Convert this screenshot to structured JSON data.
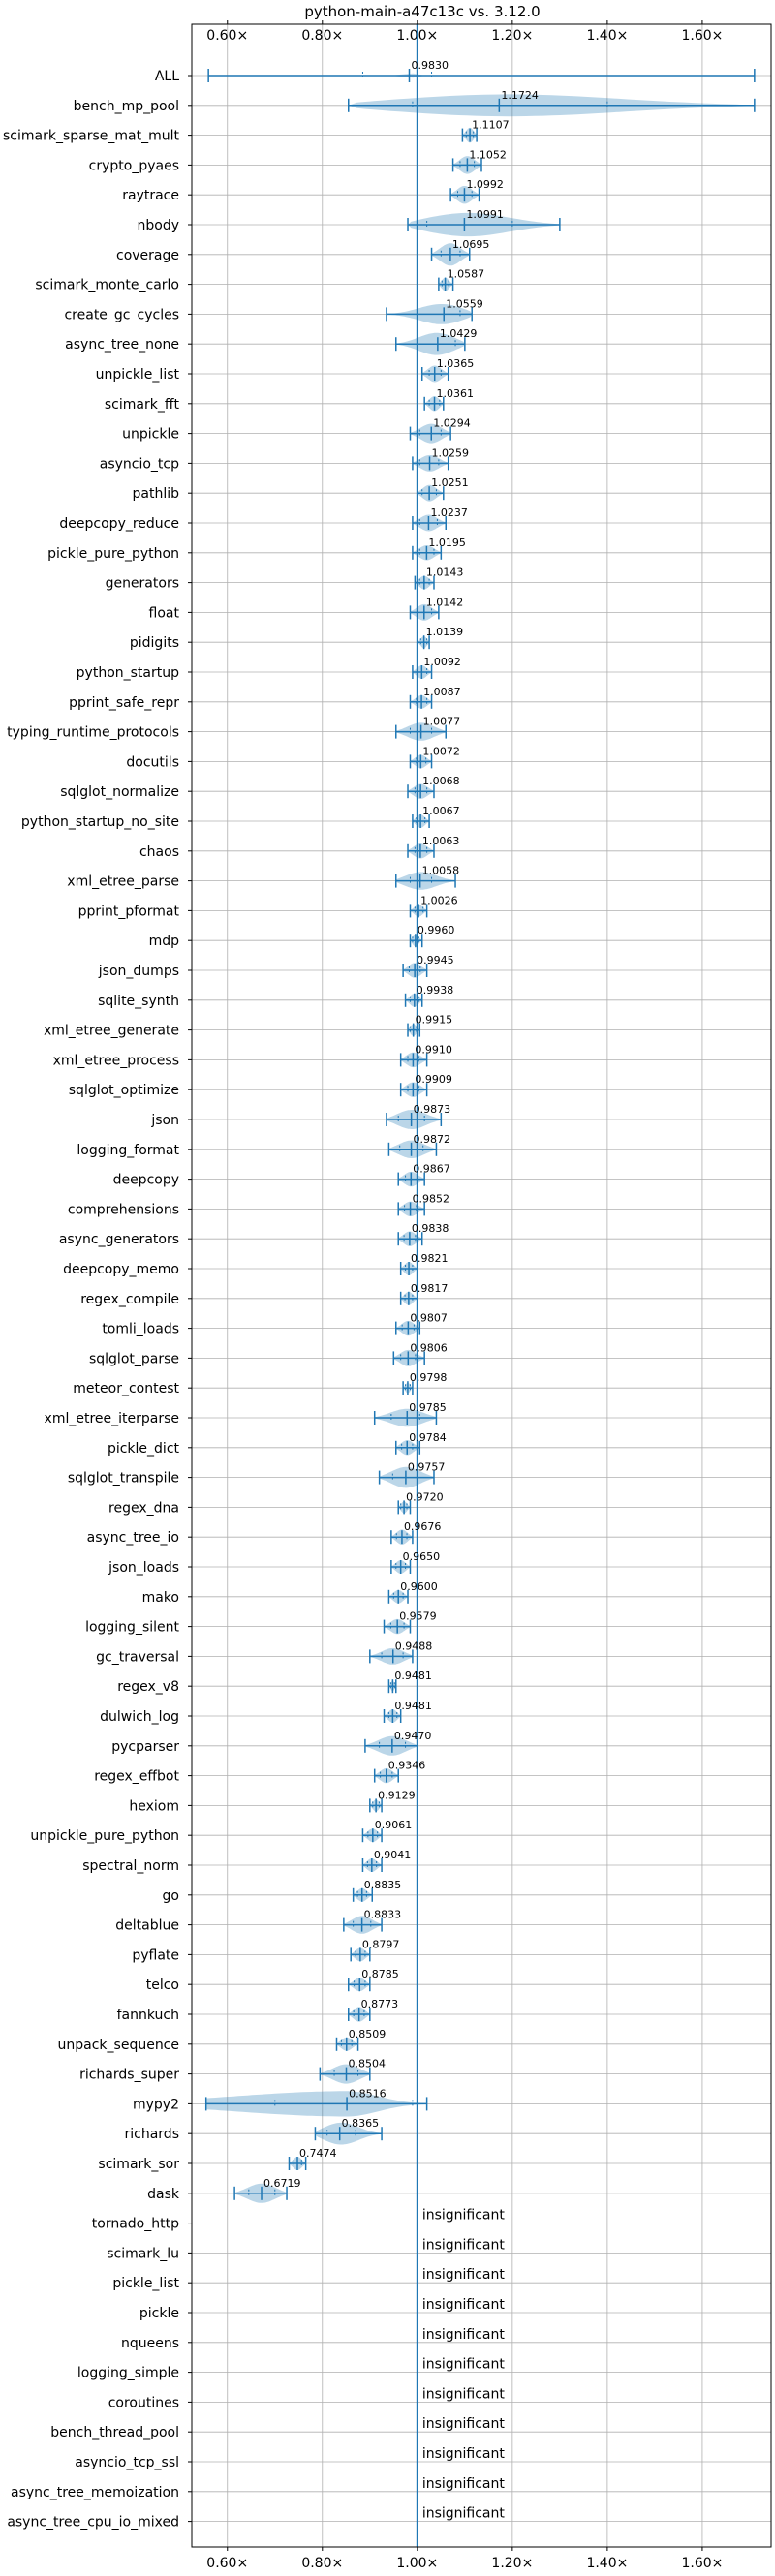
{
  "chart_data": {
    "type": "violin",
    "title": "python-main-a47c13c vs. 3.12.0",
    "xlim": [
      0.525,
      1.745
    ],
    "xticks": [
      0.6,
      0.8,
      1.0,
      1.2,
      1.4,
      1.6
    ],
    "xtick_labels": [
      "0.60×",
      "0.80×",
      "1.00×",
      "1.20×",
      "1.40×",
      "1.60×"
    ],
    "reference_line": 1.0,
    "grid": true,
    "series_color": "#1f77b4",
    "insignificant_label": "insignificant",
    "benchmarks": [
      {
        "name": "ALL",
        "value": 0.983,
        "label": "0.9830",
        "min": 0.56,
        "max": 1.71,
        "q1": 0.885,
        "q3": 1.03,
        "half": 0.02,
        "shape": "spike"
      },
      {
        "name": "bench_mp_pool",
        "value": 1.1724,
        "label": "1.1724",
        "min": 0.855,
        "max": 1.71,
        "q1": 0.99,
        "q3": 1.4,
        "half": 0.75,
        "shape": "wide"
      },
      {
        "name": "scimark_sparse_mat_mult",
        "value": 1.1107,
        "label": "1.1107",
        "min": 1.095,
        "max": 1.125,
        "q1": 1.103,
        "q3": 1.118,
        "half": 0.5,
        "shape": "normal"
      },
      {
        "name": "crypto_pyaes",
        "value": 1.1052,
        "label": "1.1052",
        "min": 1.075,
        "max": 1.135,
        "q1": 1.09,
        "q3": 1.12,
        "half": 0.6,
        "shape": "normal"
      },
      {
        "name": "raytrace",
        "value": 1.0992,
        "label": "1.0992",
        "min": 1.07,
        "max": 1.13,
        "q1": 1.085,
        "q3": 1.115,
        "half": 0.6,
        "shape": "normal"
      },
      {
        "name": "nbody",
        "value": 1.0991,
        "label": "1.0991",
        "min": 0.98,
        "max": 1.3,
        "q1": 1.02,
        "q3": 1.2,
        "half": 0.8,
        "shape": "wide"
      },
      {
        "name": "coverage",
        "value": 1.0695,
        "label": "1.0695",
        "min": 1.03,
        "max": 1.11,
        "q1": 1.05,
        "q3": 1.09,
        "half": 0.75,
        "shape": "normal"
      },
      {
        "name": "scimark_monte_carlo",
        "value": 1.0587,
        "label": "1.0587",
        "min": 1.045,
        "max": 1.075,
        "q1": 1.052,
        "q3": 1.066,
        "half": 0.45,
        "shape": "normal"
      },
      {
        "name": "create_gc_cycles",
        "value": 1.0559,
        "label": "1.0559",
        "min": 0.935,
        "max": 1.115,
        "q1": 1.0,
        "q3": 1.09,
        "half": 0.7,
        "shape": "normal"
      },
      {
        "name": "async_tree_none",
        "value": 1.0429,
        "label": "1.0429",
        "min": 0.955,
        "max": 1.1,
        "q1": 1.0,
        "q3": 1.08,
        "half": 0.75,
        "shape": "normal"
      },
      {
        "name": "unpickle_list",
        "value": 1.0365,
        "label": "1.0365",
        "min": 1.01,
        "max": 1.065,
        "q1": 1.025,
        "q3": 1.05,
        "half": 0.55,
        "shape": "normal"
      },
      {
        "name": "scimark_fft",
        "value": 1.0361,
        "label": "1.0361",
        "min": 1.015,
        "max": 1.055,
        "q1": 1.025,
        "q3": 1.047,
        "half": 0.5,
        "shape": "normal"
      },
      {
        "name": "unpickle",
        "value": 1.0294,
        "label": "1.0294",
        "min": 0.985,
        "max": 1.07,
        "q1": 1.005,
        "q3": 1.05,
        "half": 0.65,
        "shape": "normal"
      },
      {
        "name": "asyncio_tcp",
        "value": 1.0259,
        "label": "1.0259",
        "min": 0.99,
        "max": 1.065,
        "q1": 1.005,
        "q3": 1.045,
        "half": 0.55,
        "shape": "normal"
      },
      {
        "name": "pathlib",
        "value": 1.0251,
        "label": "1.0251",
        "min": 1.0,
        "max": 1.055,
        "q1": 1.01,
        "q3": 1.04,
        "half": 0.55,
        "shape": "normal"
      },
      {
        "name": "deepcopy_reduce",
        "value": 1.0237,
        "label": "1.0237",
        "min": 0.99,
        "max": 1.06,
        "q1": 1.005,
        "q3": 1.042,
        "half": 0.55,
        "shape": "normal"
      },
      {
        "name": "pickle_pure_python",
        "value": 1.0195,
        "label": "1.0195",
        "min": 0.99,
        "max": 1.05,
        "q1": 1.005,
        "q3": 1.035,
        "half": 0.5,
        "shape": "normal"
      },
      {
        "name": "generators",
        "value": 1.0143,
        "label": "1.0143",
        "min": 0.995,
        "max": 1.035,
        "q1": 1.005,
        "q3": 1.025,
        "half": 0.45,
        "shape": "normal"
      },
      {
        "name": "float",
        "value": 1.0142,
        "label": "1.0142",
        "min": 0.985,
        "max": 1.045,
        "q1": 1.0,
        "q3": 1.03,
        "half": 0.55,
        "shape": "normal"
      },
      {
        "name": "pidigits",
        "value": 1.0139,
        "label": "1.0139",
        "min": 1.0,
        "max": 1.025,
        "q1": 1.007,
        "q3": 1.02,
        "half": 0.4,
        "shape": "normal"
      },
      {
        "name": "python_startup",
        "value": 1.0092,
        "label": "1.0092",
        "min": 0.99,
        "max": 1.03,
        "q1": 1.0,
        "q3": 1.02,
        "half": 0.45,
        "shape": "normal"
      },
      {
        "name": "pprint_safe_repr",
        "value": 1.0087,
        "label": "1.0087",
        "min": 0.985,
        "max": 1.03,
        "q1": 0.998,
        "q3": 1.02,
        "half": 0.45,
        "shape": "normal"
      },
      {
        "name": "typing_runtime_protocols",
        "value": 1.0077,
        "label": "1.0077",
        "min": 0.955,
        "max": 1.06,
        "q1": 0.985,
        "q3": 1.03,
        "half": 0.6,
        "shape": "normal"
      },
      {
        "name": "docutils",
        "value": 1.0072,
        "label": "1.0072",
        "min": 0.985,
        "max": 1.03,
        "q1": 0.998,
        "q3": 1.018,
        "half": 0.45,
        "shape": "normal"
      },
      {
        "name": "sqlglot_normalize",
        "value": 1.0068,
        "label": "1.0068",
        "min": 0.98,
        "max": 1.035,
        "q1": 0.995,
        "q3": 1.02,
        "half": 0.5,
        "shape": "normal"
      },
      {
        "name": "python_startup_no_site",
        "value": 1.0067,
        "label": "1.0067",
        "min": 0.99,
        "max": 1.025,
        "q1": 0.998,
        "q3": 1.016,
        "half": 0.45,
        "shape": "normal"
      },
      {
        "name": "chaos",
        "value": 1.0063,
        "label": "1.0063",
        "min": 0.98,
        "max": 1.035,
        "q1": 0.995,
        "q3": 1.02,
        "half": 0.5,
        "shape": "normal"
      },
      {
        "name": "xml_etree_parse",
        "value": 1.0058,
        "label": "1.0058",
        "min": 0.955,
        "max": 1.08,
        "q1": 0.985,
        "q3": 1.03,
        "half": 0.6,
        "shape": "normal"
      },
      {
        "name": "pprint_pformat",
        "value": 1.0026,
        "label": "1.0026",
        "min": 0.985,
        "max": 1.02,
        "q1": 0.995,
        "q3": 1.012,
        "half": 0.4,
        "shape": "normal"
      },
      {
        "name": "mdp",
        "value": 0.996,
        "label": "0.9960",
        "min": 0.985,
        "max": 1.01,
        "q1": 0.99,
        "q3": 1.003,
        "half": 0.4,
        "shape": "normal"
      },
      {
        "name": "json_dumps",
        "value": 0.9945,
        "label": "0.9945",
        "min": 0.97,
        "max": 1.02,
        "q1": 0.983,
        "q3": 1.006,
        "half": 0.5,
        "shape": "normal"
      },
      {
        "name": "sqlite_synth",
        "value": 0.9938,
        "label": "0.9938",
        "min": 0.975,
        "max": 1.01,
        "q1": 0.985,
        "q3": 1.003,
        "half": 0.45,
        "shape": "normal"
      },
      {
        "name": "xml_etree_generate",
        "value": 0.9915,
        "label": "0.9915",
        "min": 0.98,
        "max": 1.005,
        "q1": 0.985,
        "q3": 0.998,
        "half": 0.4,
        "shape": "normal"
      },
      {
        "name": "xml_etree_process",
        "value": 0.991,
        "label": "0.9910",
        "min": 0.965,
        "max": 1.02,
        "q1": 0.98,
        "q3": 1.003,
        "half": 0.5,
        "shape": "normal"
      },
      {
        "name": "sqlglot_optimize",
        "value": 0.9909,
        "label": "0.9909",
        "min": 0.965,
        "max": 1.02,
        "q1": 0.98,
        "q3": 1.003,
        "half": 0.5,
        "shape": "normal"
      },
      {
        "name": "json",
        "value": 0.9873,
        "label": "0.9873",
        "min": 0.935,
        "max": 1.05,
        "q1": 0.96,
        "q3": 1.015,
        "half": 0.65,
        "shape": "normal"
      },
      {
        "name": "logging_format",
        "value": 0.9872,
        "label": "0.9872",
        "min": 0.94,
        "max": 1.04,
        "q1": 0.963,
        "q3": 1.012,
        "half": 0.6,
        "shape": "normal"
      },
      {
        "name": "deepcopy",
        "value": 0.9867,
        "label": "0.9867",
        "min": 0.96,
        "max": 1.015,
        "q1": 0.975,
        "q3": 1.0,
        "half": 0.5,
        "shape": "normal"
      },
      {
        "name": "comprehensions",
        "value": 0.9852,
        "label": "0.9852",
        "min": 0.96,
        "max": 1.015,
        "q1": 0.973,
        "q3": 0.998,
        "half": 0.5,
        "shape": "normal"
      },
      {
        "name": "async_generators",
        "value": 0.9838,
        "label": "0.9838",
        "min": 0.96,
        "max": 1.01,
        "q1": 0.972,
        "q3": 0.996,
        "half": 0.5,
        "shape": "normal"
      },
      {
        "name": "deepcopy_memo",
        "value": 0.9821,
        "label": "0.9821",
        "min": 0.965,
        "max": 1.0,
        "q1": 0.975,
        "q3": 0.99,
        "half": 0.45,
        "shape": "normal"
      },
      {
        "name": "regex_compile",
        "value": 0.9817,
        "label": "0.9817",
        "min": 0.965,
        "max": 1.0,
        "q1": 0.974,
        "q3": 0.99,
        "half": 0.45,
        "shape": "normal"
      },
      {
        "name": "tomli_loads",
        "value": 0.9807,
        "label": "0.9807",
        "min": 0.955,
        "max": 1.005,
        "q1": 0.968,
        "q3": 0.993,
        "half": 0.5,
        "shape": "normal"
      },
      {
        "name": "sqlglot_parse",
        "value": 0.9806,
        "label": "0.9806",
        "min": 0.95,
        "max": 1.015,
        "q1": 0.965,
        "q3": 0.996,
        "half": 0.55,
        "shape": "normal"
      },
      {
        "name": "meteor_contest",
        "value": 0.9798,
        "label": "0.9798",
        "min": 0.97,
        "max": 0.99,
        "q1": 0.975,
        "q3": 0.985,
        "half": 0.35,
        "shape": "normal"
      },
      {
        "name": "xml_etree_iterparse",
        "value": 0.9785,
        "label": "0.9785",
        "min": 0.91,
        "max": 1.04,
        "q1": 0.945,
        "q3": 1.005,
        "half": 0.6,
        "shape": "normal"
      },
      {
        "name": "pickle_dict",
        "value": 0.9784,
        "label": "0.9784",
        "min": 0.955,
        "max": 1.005,
        "q1": 0.967,
        "q3": 0.99,
        "half": 0.5,
        "shape": "normal"
      },
      {
        "name": "sqlglot_transpile",
        "value": 0.9757,
        "label": "0.9757",
        "min": 0.92,
        "max": 1.035,
        "q1": 0.948,
        "q3": 1.0,
        "half": 0.7,
        "shape": "normal"
      },
      {
        "name": "regex_dna",
        "value": 0.972,
        "label": "0.9720",
        "min": 0.96,
        "max": 0.985,
        "q1": 0.965,
        "q3": 0.978,
        "half": 0.4,
        "shape": "normal"
      },
      {
        "name": "async_tree_io",
        "value": 0.9676,
        "label": "0.9676",
        "min": 0.945,
        "max": 0.99,
        "q1": 0.956,
        "q3": 0.978,
        "half": 0.5,
        "shape": "normal"
      },
      {
        "name": "json_loads",
        "value": 0.965,
        "label": "0.9650",
        "min": 0.945,
        "max": 0.985,
        "q1": 0.955,
        "q3": 0.975,
        "half": 0.45,
        "shape": "normal"
      },
      {
        "name": "mako",
        "value": 0.96,
        "label": "0.9600",
        "min": 0.94,
        "max": 0.98,
        "q1": 0.95,
        "q3": 0.97,
        "half": 0.45,
        "shape": "normal"
      },
      {
        "name": "logging_silent",
        "value": 0.9579,
        "label": "0.9579",
        "min": 0.93,
        "max": 0.985,
        "q1": 0.944,
        "q3": 0.972,
        "half": 0.5,
        "shape": "normal"
      },
      {
        "name": "gc_traversal",
        "value": 0.9488,
        "label": "0.9488",
        "min": 0.9,
        "max": 0.99,
        "q1": 0.925,
        "q3": 0.97,
        "half": 0.55,
        "shape": "normal"
      },
      {
        "name": "regex_v8",
        "value": 0.9481,
        "label": "0.9481",
        "min": 0.94,
        "max": 0.955,
        "q1": 0.944,
        "q3": 0.952,
        "half": 0.35,
        "shape": "normal"
      },
      {
        "name": "dulwich_log",
        "value": 0.9481,
        "label": "0.9481",
        "min": 0.93,
        "max": 0.965,
        "q1": 0.94,
        "q3": 0.957,
        "half": 0.45,
        "shape": "normal"
      },
      {
        "name": "pycparser",
        "value": 0.947,
        "label": "0.9470",
        "min": 0.89,
        "max": 1.0,
        "q1": 0.92,
        "q3": 0.975,
        "half": 0.65,
        "shape": "normal"
      },
      {
        "name": "regex_effbot",
        "value": 0.9346,
        "label": "0.9346",
        "min": 0.91,
        "max": 0.96,
        "q1": 0.922,
        "q3": 0.947,
        "half": 0.5,
        "shape": "normal"
      },
      {
        "name": "hexiom",
        "value": 0.9129,
        "label": "0.9129",
        "min": 0.9,
        "max": 0.925,
        "q1": 0.906,
        "q3": 0.92,
        "half": 0.4,
        "shape": "normal"
      },
      {
        "name": "unpickle_pure_python",
        "value": 0.9061,
        "label": "0.9061",
        "min": 0.885,
        "max": 0.925,
        "q1": 0.896,
        "q3": 0.916,
        "half": 0.45,
        "shape": "normal"
      },
      {
        "name": "spectral_norm",
        "value": 0.9041,
        "label": "0.9041",
        "min": 0.885,
        "max": 0.925,
        "q1": 0.895,
        "q3": 0.914,
        "half": 0.45,
        "shape": "normal"
      },
      {
        "name": "go",
        "value": 0.8835,
        "label": "0.8835",
        "min": 0.865,
        "max": 0.905,
        "q1": 0.874,
        "q3": 0.893,
        "half": 0.45,
        "shape": "normal"
      },
      {
        "name": "deltablue",
        "value": 0.8833,
        "label": "0.8833",
        "min": 0.845,
        "max": 0.925,
        "q1": 0.865,
        "q3": 0.902,
        "half": 0.6,
        "shape": "normal"
      },
      {
        "name": "pyflate",
        "value": 0.8797,
        "label": "0.8797",
        "min": 0.86,
        "max": 0.9,
        "q1": 0.87,
        "q3": 0.89,
        "half": 0.45,
        "shape": "normal"
      },
      {
        "name": "telco",
        "value": 0.8785,
        "label": "0.8785",
        "min": 0.855,
        "max": 0.9,
        "q1": 0.867,
        "q3": 0.89,
        "half": 0.45,
        "shape": "normal"
      },
      {
        "name": "fannkuch",
        "value": 0.8773,
        "label": "0.8773",
        "min": 0.855,
        "max": 0.9,
        "q1": 0.866,
        "q3": 0.888,
        "half": 0.5,
        "shape": "normal"
      },
      {
        "name": "unpack_sequence",
        "value": 0.8509,
        "label": "0.8509",
        "min": 0.83,
        "max": 0.875,
        "q1": 0.84,
        "q3": 0.862,
        "half": 0.45,
        "shape": "normal"
      },
      {
        "name": "richards_super",
        "value": 0.8504,
        "label": "0.8504",
        "min": 0.795,
        "max": 0.9,
        "q1": 0.825,
        "q3": 0.875,
        "half": 0.65,
        "shape": "normal"
      },
      {
        "name": "mypy2",
        "value": 0.8516,
        "label": "0.8516",
        "min": 0.555,
        "max": 1.02,
        "q1": 0.7,
        "q3": 0.99,
        "half": 0.85,
        "shape": "tail"
      },
      {
        "name": "richards",
        "value": 0.8365,
        "label": "0.8365",
        "min": 0.785,
        "max": 0.925,
        "q1": 0.81,
        "q3": 0.87,
        "half": 0.75,
        "shape": "normal"
      },
      {
        "name": "scimark_sor",
        "value": 0.7474,
        "label": "0.7474",
        "min": 0.73,
        "max": 0.765,
        "q1": 0.74,
        "q3": 0.756,
        "half": 0.45,
        "shape": "normal"
      },
      {
        "name": "dask",
        "value": 0.6719,
        "label": "0.6719",
        "min": 0.615,
        "max": 0.725,
        "q1": 0.645,
        "q3": 0.7,
        "half": 0.65,
        "shape": "normal"
      },
      {
        "name": "tornado_http",
        "insignificant": true
      },
      {
        "name": "scimark_lu",
        "insignificant": true
      },
      {
        "name": "pickle_list",
        "insignificant": true
      },
      {
        "name": "pickle",
        "insignificant": true
      },
      {
        "name": "nqueens",
        "insignificant": true
      },
      {
        "name": "logging_simple",
        "insignificant": true
      },
      {
        "name": "coroutines",
        "insignificant": true
      },
      {
        "name": "bench_thread_pool",
        "insignificant": true
      },
      {
        "name": "asyncio_tcp_ssl",
        "insignificant": true
      },
      {
        "name": "async_tree_memoization",
        "insignificant": true
      },
      {
        "name": "async_tree_cpu_io_mixed",
        "insignificant": true
      }
    ]
  }
}
